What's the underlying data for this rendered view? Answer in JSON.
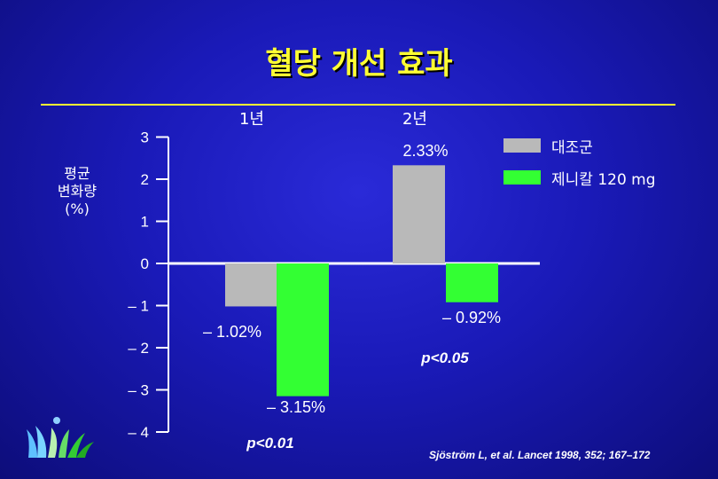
{
  "title": "혈당 개선 효과",
  "y_axis_label": [
    "평균",
    "변화량",
    "(%)"
  ],
  "legend": [
    {
      "label": "대조군",
      "color": "#b9b9b9",
      "icon": "gray-swatch"
    },
    {
      "label": "제니칼 120 mg",
      "color": "#33ff33",
      "icon": "green-swatch"
    }
  ],
  "citation": "Sjöström L, et al. Lancet 1998, 352; 167–172",
  "logo": {
    "icon": "leaf-logo-icon"
  },
  "chart_data": {
    "type": "bar",
    "categories": [
      "1년",
      "2년"
    ],
    "series": [
      {
        "name": "대조군",
        "values": [
          -1.02,
          2.33
        ],
        "color": "#b9b9b9"
      },
      {
        "name": "제니칼 120 mg",
        "values": [
          -3.15,
          -0.92
        ],
        "color": "#33ff33"
      }
    ],
    "ylim": [
      -4,
      3
    ],
    "yticks": [
      3,
      2,
      1,
      0,
      -1,
      -2,
      -3,
      -4
    ],
    "ytick_labels": [
      "3",
      "2",
      "1",
      "0",
      "– 1",
      "– 2",
      "– 3",
      "– 4"
    ],
    "data_labels": [
      {
        "text": "– 1.02%",
        "series": 0,
        "category": 0
      },
      {
        "text": "– 3.15%",
        "series": 1,
        "category": 0
      },
      {
        "text": "2.33%",
        "series": 0,
        "category": 1
      },
      {
        "text": "– 0.92%",
        "series": 1,
        "category": 1
      }
    ],
    "annotations": [
      {
        "text": "p<0.01",
        "category": 0
      },
      {
        "text": "p<0.05",
        "category": 1
      }
    ]
  }
}
